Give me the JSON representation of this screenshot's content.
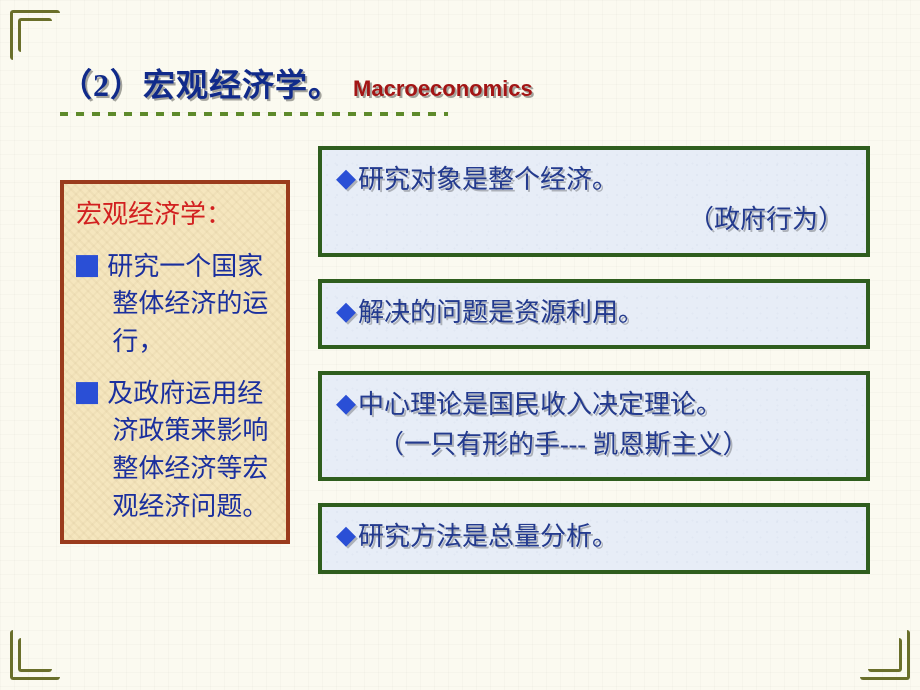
{
  "colors": {
    "background": "#fbfaf0",
    "corner": "#6a6f2a",
    "title_main": "#102a8a",
    "title_sub": "#a31515",
    "underline": "#5e8a2b",
    "left_box_border": "#9a3b1c",
    "left_box_bg": "#f5e6be",
    "left_title": "#d22020",
    "left_text": "#1a2f9e",
    "left_bullet": "#2a4fd6",
    "right_box_border": "#2f5e1e",
    "right_box_bg": "#e7edf7",
    "right_text": "#233a8e",
    "right_diamond": "#2a4fd6"
  },
  "fonts": {
    "title_main_size": 32,
    "title_sub_size": 22,
    "body_size": 26,
    "left_body_size": 26
  },
  "title": {
    "main": "（2）宏观经济学。",
    "sub": "Macroeconomics"
  },
  "left": {
    "heading": "宏观经济学：",
    "items": [
      "研究一个国家整体经济的运行，",
      "及政府运用经济政策来影响整体经济等宏观经济问题。"
    ]
  },
  "right": [
    {
      "line": "研究对象是整个经济。",
      "sub": "（政府行为）",
      "sub_align": "right"
    },
    {
      "line": "解决的问题是资源利用。"
    },
    {
      "line": "中心理论是国民收入决定理论。",
      "sub": "（一只有形的手--- 凯恩斯主义）",
      "sub_align": "center"
    },
    {
      "line": "研究方法是总量分析。"
    }
  ]
}
